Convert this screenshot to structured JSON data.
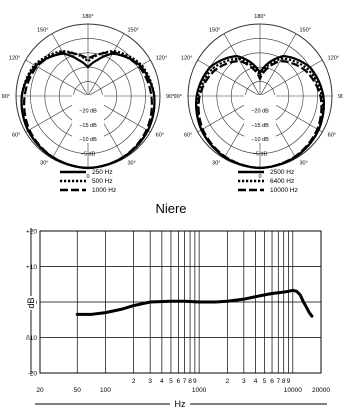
{
  "polar_charts": [
    {
      "name": "polar-low",
      "angle_labels": [
        "180°",
        "150°",
        "150°",
        "120°",
        "120°",
        "90°",
        "90°",
        "60°",
        "60°",
        "30°",
        "30°",
        "0"
      ],
      "ring_labels": [
        "−20 dB",
        "−15 dB",
        "−10 dB",
        "−5 dB"
      ],
      "legend": [
        {
          "label": "250 Hz",
          "style": "solid"
        },
        {
          "label": "500 Hz",
          "style": "dotted"
        },
        {
          "label": "1000 Hz",
          "style": "dashed"
        }
      ]
    },
    {
      "name": "polar-high",
      "angle_labels": [
        "180°",
        "150°",
        "150°",
        "120°",
        "120°",
        "90°",
        "90°",
        "60°",
        "60°",
        "30°",
        "30°",
        "0"
      ],
      "ring_labels": [
        "−20 dB",
        "−15 dB",
        "−10 dB",
        "−5 dB"
      ],
      "legend": [
        {
          "label": "2500 Hz",
          "style": "solid"
        },
        {
          "label": "6400 Hz",
          "style": "dotted"
        },
        {
          "label": "10000 Hz",
          "style": "dashed"
        }
      ]
    }
  ],
  "section_caption": "Niere",
  "chart_data": [
    {
      "type": "polar",
      "series": [
        {
          "name": "250 Hz",
          "style": "solid",
          "angles_deg": [
            0,
            30,
            60,
            90,
            120,
            150,
            165,
            180
          ],
          "levels_db": [
            0,
            -0.5,
            -1,
            -2,
            -4,
            -8,
            -12,
            -15
          ]
        },
        {
          "name": "500 Hz",
          "style": "dotted",
          "angles_deg": [
            0,
            30,
            60,
            90,
            120,
            150,
            165,
            180
          ],
          "levels_db": [
            0,
            -0.4,
            -1,
            -2,
            -3.5,
            -7,
            -10,
            -13
          ]
        },
        {
          "name": "1000 Hz",
          "style": "dashed",
          "angles_deg": [
            0,
            30,
            60,
            90,
            120,
            150,
            165,
            180
          ],
          "levels_db": [
            0,
            -0.5,
            -1.5,
            -3,
            -4.5,
            -7.5,
            -10,
            -12
          ]
        }
      ],
      "rrange_db": [
        -25,
        0
      ]
    },
    {
      "type": "polar",
      "series": [
        {
          "name": "2500 Hz",
          "style": "solid",
          "angles_deg": [
            0,
            30,
            60,
            90,
            120,
            150,
            165,
            180
          ],
          "levels_db": [
            0,
            -0.5,
            -1.5,
            -3,
            -5,
            -9,
            -13,
            -17
          ]
        },
        {
          "name": "6400 Hz",
          "style": "dotted",
          "angles_deg": [
            0,
            30,
            60,
            90,
            120,
            150,
            165,
            180
          ],
          "levels_db": [
            0,
            -0.5,
            -1.5,
            -3.5,
            -6,
            -10,
            -14,
            -18
          ]
        },
        {
          "name": "10000 Hz",
          "style": "dashed",
          "angles_deg": [
            0,
            30,
            60,
            90,
            120,
            150,
            165,
            180
          ],
          "levels_db": [
            0,
            -0.7,
            -2,
            -4,
            -7,
            -11,
            -15,
            -19
          ]
        }
      ],
      "rrange_db": [
        -25,
        0
      ]
    },
    {
      "type": "line",
      "xlabel": "Hz",
      "ylabel": "dB",
      "x_scale": "log",
      "xlim": [
        20,
        20000
      ],
      "ylim": [
        -20,
        20
      ],
      "y_ticks": [
        {
          "v": 20,
          "label": "+20"
        },
        {
          "v": 10,
          "label": "+10"
        },
        {
          "v": 0,
          "label": "0"
        },
        {
          "v": -10,
          "label": "ñ10"
        },
        {
          "v": -20,
          "label": "-20"
        }
      ],
      "x_ticks": [
        {
          "v": 20,
          "label": "20"
        },
        {
          "v": 50,
          "label": "50"
        },
        {
          "v": 100,
          "label": "100"
        },
        {
          "v": 200,
          "label": "2"
        },
        {
          "v": 300,
          "label": "3"
        },
        {
          "v": 400,
          "label": "4"
        },
        {
          "v": 500,
          "label": "5"
        },
        {
          "v": 600,
          "label": "6"
        },
        {
          "v": 700,
          "label": "7"
        },
        {
          "v": 800,
          "label": "8"
        },
        {
          "v": 900,
          "label": "9"
        },
        {
          "v": 1000,
          "label": "1000"
        },
        {
          "v": 2000,
          "label": "2"
        },
        {
          "v": 3000,
          "label": "3"
        },
        {
          "v": 4000,
          "label": "4"
        },
        {
          "v": 5000,
          "label": "5"
        },
        {
          "v": 6000,
          "label": "6"
        },
        {
          "v": 7000,
          "label": "7"
        },
        {
          "v": 8000,
          "label": "8"
        },
        {
          "v": 9000,
          "label": "9"
        },
        {
          "v": 10000,
          "label": "10000"
        },
        {
          "v": 20000,
          "label": "20000"
        }
      ],
      "series": [
        {
          "x": [
            50,
            70,
            100,
            150,
            200,
            300,
            500,
            700,
            1000,
            1500,
            2000,
            3000,
            4000,
            5000,
            6000,
            7000,
            8000,
            9000,
            10000,
            11000,
            12000,
            13000,
            14000,
            15000,
            16000
          ],
          "y": [
            -3.5,
            -3.5,
            -3,
            -2,
            -1,
            0,
            0.2,
            0.2,
            0,
            0,
            0.2,
            0.8,
            1.5,
            2,
            2.4,
            2.6,
            2.8,
            3,
            3.3,
            3,
            2,
            0,
            -1.5,
            -3,
            -4
          ]
        }
      ]
    }
  ]
}
